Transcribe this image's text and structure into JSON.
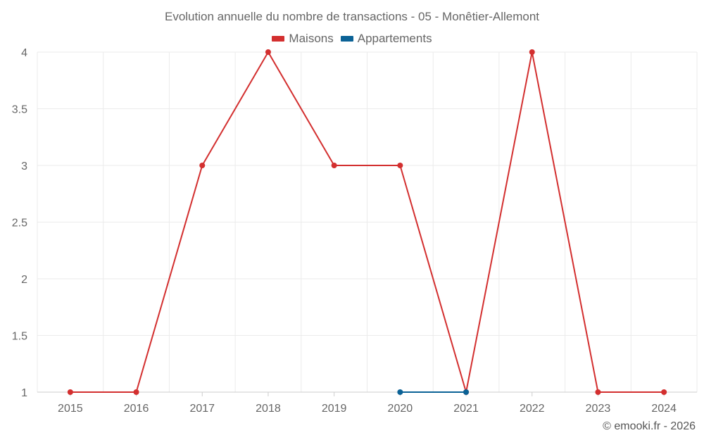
{
  "chart_data": {
    "type": "line",
    "title": "Evolution annuelle du nombre de transactions - 05 - Monêtier-Allemont",
    "categories": [
      "2015",
      "2016",
      "2017",
      "2018",
      "2019",
      "2020",
      "2021",
      "2022",
      "2023",
      "2024"
    ],
    "series": [
      {
        "name": "Maisons",
        "color": "#d32f2f",
        "values": [
          1,
          1,
          3,
          4,
          3,
          3,
          1,
          4,
          1,
          1
        ]
      },
      {
        "name": "Appartements",
        "color": "#0b6296",
        "values": [
          null,
          null,
          null,
          null,
          null,
          1,
          1,
          null,
          null,
          null
        ]
      }
    ],
    "yticks": [
      "1",
      "1.5",
      "2",
      "2.5",
      "3",
      "3.5",
      "4"
    ],
    "ylim": [
      1,
      4
    ],
    "grid": true,
    "legend_position": "top-center"
  },
  "credit": "© emooki.fr - 2026"
}
